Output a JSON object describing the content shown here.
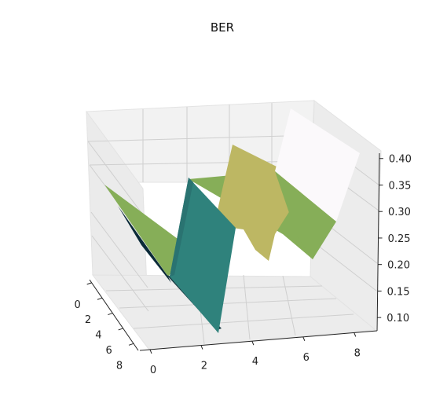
{
  "chart_data": {
    "type": "surface3d",
    "title": "BER",
    "x_ticks": [
      "0",
      "2",
      "4",
      "6",
      "8"
    ],
    "y_ticks": [
      "0",
      "2",
      "4",
      "6",
      "8"
    ],
    "z_ticks": [
      "0.10",
      "0.15",
      "0.20",
      "0.25",
      "0.30",
      "0.35",
      "0.40"
    ],
    "xlim": [
      0,
      9
    ],
    "ylim": [
      0,
      9
    ],
    "zlim": [
      0.075,
      0.41
    ],
    "grid": true,
    "colormap": "gist_earth",
    "colors": {
      "pane": "#f2f2f2",
      "pane_side": "#ebebeb",
      "grid": "#cfcfcf",
      "surface_high": "#fbf9fb",
      "surface_upper": "#bdb763",
      "surface_mid": "#86ae58",
      "surface_low": "#2f827c",
      "surface_lowest": "#0a2a38"
    },
    "surface_description": "BER surface over a 10x10 grid; values mostly low (~0.10) with ridges peaking near x≈6-9 (~0.40)"
  }
}
